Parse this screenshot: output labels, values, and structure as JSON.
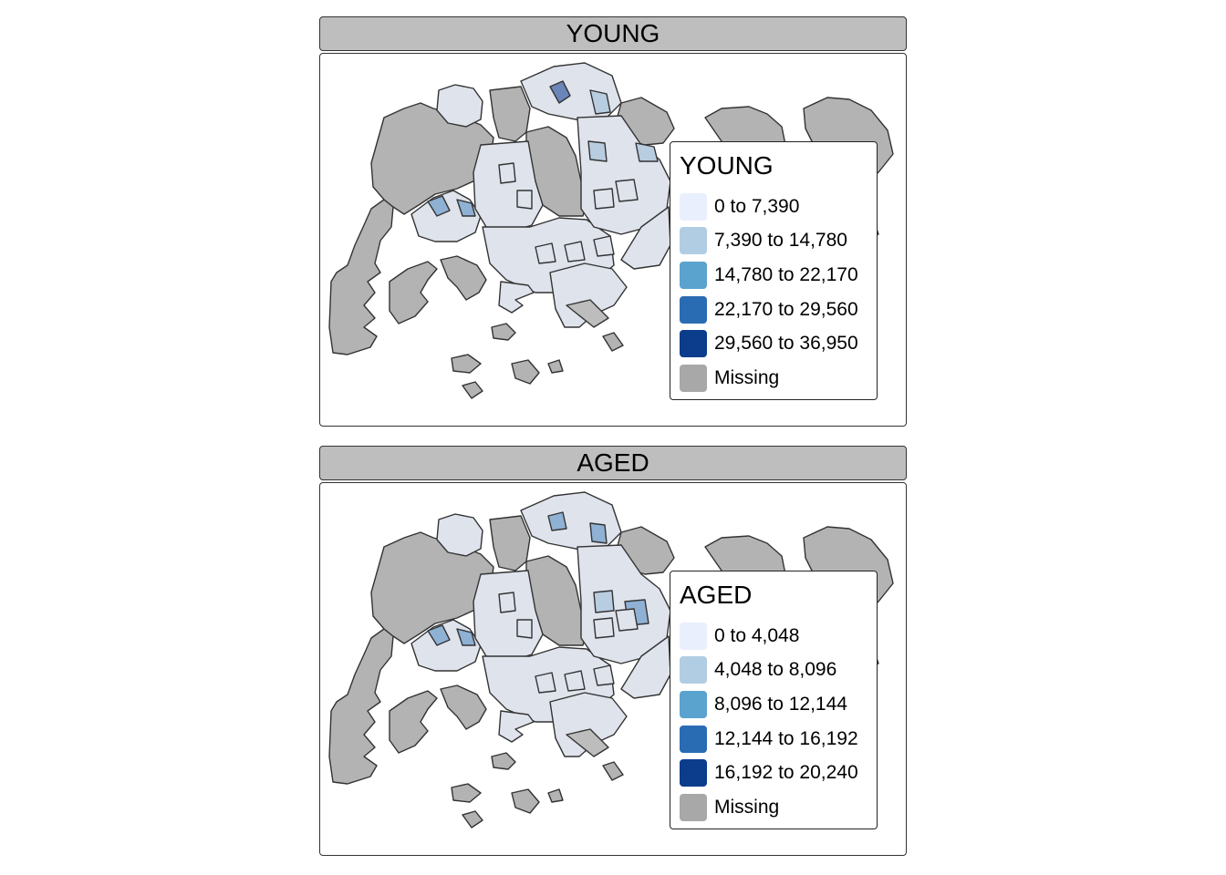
{
  "colors": {
    "strip_background": "#bebebe",
    "missing": "#a8a8a8",
    "land_missing": "#b3b3b3",
    "border": "#333333",
    "scale": [
      "#e9effd",
      "#b1cde3",
      "#5ba3cf",
      "#2a6cb3",
      "#0b3d8c"
    ]
  },
  "facets": [
    {
      "strip_label": "YOUNG",
      "legend": {
        "title": "YOUNG",
        "items": [
          {
            "label": "0 to 7,390",
            "color": "#e9effd"
          },
          {
            "label": "7,390 to 14,780",
            "color": "#b1cde3"
          },
          {
            "label": "14,780 to 22,170",
            "color": "#5ba3cf"
          },
          {
            "label": "22,170 to 29,560",
            "color": "#2a6cb3"
          },
          {
            "label": "29,560 to 36,950",
            "color": "#0b3d8c"
          },
          {
            "label": "Missing",
            "color": "#a8a8a8"
          }
        ]
      }
    },
    {
      "strip_label": "AGED",
      "legend": {
        "title": "AGED",
        "items": [
          {
            "label": "0 to 4,048",
            "color": "#e9effd"
          },
          {
            "label": "4,048 to 8,096",
            "color": "#b1cde3"
          },
          {
            "label": "8,096 to 12,144",
            "color": "#5ba3cf"
          },
          {
            "label": "12,144 to 16,192",
            "color": "#2a6cb3"
          },
          {
            "label": "16,192 to 20,240",
            "color": "#0b3d8c"
          },
          {
            "label": "Missing",
            "color": "#a8a8a8"
          }
        ]
      }
    }
  ]
}
